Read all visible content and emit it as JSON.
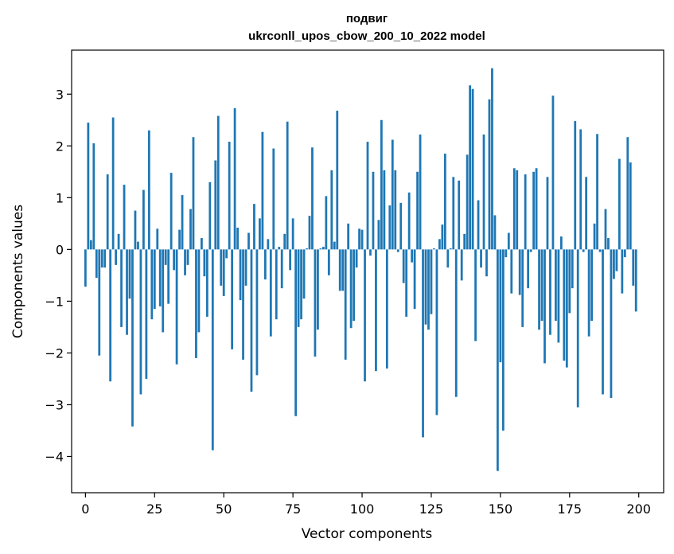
{
  "chart_data": {
    "type": "bar",
    "title": "подвиг",
    "subtitle": "ukrconll_upos_cbow_200_10_2022 model",
    "xlabel": "Vector components",
    "ylabel": "Components values",
    "xlim": [
      -5,
      209
    ],
    "ylim": [
      -4.7,
      3.85
    ],
    "xticks": [
      0,
      25,
      50,
      75,
      100,
      125,
      150,
      175,
      200
    ],
    "xtick_labels": [
      "0",
      "25",
      "50",
      "75",
      "100",
      "125",
      "150",
      "175",
      "200"
    ],
    "yticks": [
      -4,
      -3,
      -2,
      -1,
      0,
      1,
      2,
      3
    ],
    "ytick_labels": [
      "−4",
      "−3",
      "−2",
      "−1",
      "0",
      "1",
      "2",
      "3"
    ],
    "grid": false,
    "bar_color": "#1f77b4",
    "x": [
      0,
      1,
      2,
      3,
      4,
      5,
      6,
      7,
      8,
      9,
      10,
      11,
      12,
      13,
      14,
      15,
      16,
      17,
      18,
      19,
      20,
      21,
      22,
      23,
      24,
      25,
      26,
      27,
      28,
      29,
      30,
      31,
      32,
      33,
      34,
      35,
      36,
      37,
      38,
      39,
      40,
      41,
      42,
      43,
      44,
      45,
      46,
      47,
      48,
      49,
      50,
      51,
      52,
      53,
      54,
      55,
      56,
      57,
      58,
      59,
      60,
      61,
      62,
      63,
      64,
      65,
      66,
      67,
      68,
      69,
      70,
      71,
      72,
      73,
      74,
      75,
      76,
      77,
      78,
      79,
      80,
      81,
      82,
      83,
      84,
      85,
      86,
      87,
      88,
      89,
      90,
      91,
      92,
      93,
      94,
      95,
      96,
      97,
      98,
      99,
      100,
      101,
      102,
      103,
      104,
      105,
      106,
      107,
      108,
      109,
      110,
      111,
      112,
      113,
      114,
      115,
      116,
      117,
      118,
      119,
      120,
      121,
      122,
      123,
      124,
      125,
      126,
      127,
      128,
      129,
      130,
      131,
      132,
      133,
      134,
      135,
      136,
      137,
      138,
      139,
      140,
      141,
      142,
      143,
      144,
      145,
      146,
      147,
      148,
      149,
      150,
      151,
      152,
      153,
      154,
      155,
      156,
      157,
      158,
      159,
      160,
      161,
      162,
      163,
      164,
      165,
      166,
      167,
      168,
      169,
      170,
      171,
      172,
      173,
      174,
      175,
      176,
      177,
      178,
      179,
      180,
      181,
      182,
      183,
      184,
      185,
      186,
      187,
      188,
      189,
      190,
      191,
      192,
      193,
      194,
      195,
      196,
      197,
      198,
      199
    ],
    "values": [
      -0.72,
      2.45,
      0.18,
      2.05,
      -0.55,
      -2.05,
      -0.35,
      -0.35,
      1.45,
      -2.55,
      2.55,
      -0.3,
      0.3,
      -1.5,
      1.25,
      -1.65,
      -0.95,
      -3.42,
      0.75,
      0.15,
      -2.8,
      1.15,
      -2.5,
      2.3,
      -1.35,
      -1.15,
      0.4,
      -1.1,
      -1.6,
      -0.3,
      -1.05,
      1.48,
      -0.4,
      -2.22,
      0.38,
      1.05,
      -0.5,
      -0.3,
      0.78,
      2.17,
      -2.1,
      -1.6,
      0.22,
      -0.52,
      -1.3,
      1.3,
      -3.88,
      1.72,
      2.58,
      -0.7,
      -0.9,
      -0.17,
      2.08,
      -1.93,
      2.73,
      0.42,
      -0.98,
      -2.13,
      -0.7,
      0.32,
      -2.75,
      0.88,
      -2.43,
      0.6,
      2.27,
      -0.58,
      0.2,
      -1.68,
      1.95,
      -1.35,
      0.05,
      -0.75,
      0.3,
      2.47,
      -0.4,
      0.6,
      -3.22,
      -1.5,
      -1.35,
      -0.95,
      0.02,
      0.65,
      1.97,
      -2.07,
      -1.55,
      0.02,
      0.05,
      1.03,
      -0.5,
      1.53,
      0.15,
      2.68,
      -0.8,
      -0.8,
      -2.13,
      0.5,
      -1.52,
      -1.38,
      -0.35,
      0.4,
      0.38,
      -2.55,
      2.08,
      -0.12,
      1.5,
      -2.35,
      0.57,
      2.5,
      1.53,
      -2.3,
      0.85,
      2.12,
      1.53,
      -0.05,
      0.9,
      -0.65,
      -1.3,
      1.1,
      -0.25,
      -1.15,
      1.5,
      2.22,
      -3.63,
      -1.45,
      -1.55,
      -1.25,
      0.02,
      -3.2,
      0.2,
      0.48,
      1.85,
      -0.35,
      0.02,
      1.4,
      -2.85,
      1.33,
      -0.6,
      0.3,
      1.83,
      3.17,
      3.1,
      -1.77,
      0.95,
      -0.35,
      2.22,
      -0.52,
      2.9,
      3.5,
      0.66,
      -4.28,
      -2.18,
      -3.5,
      -0.15,
      0.32,
      -0.85,
      1.57,
      1.53,
      -0.88,
      -1.5,
      1.45,
      -0.75,
      -0.05,
      1.5,
      1.57,
      -1.55,
      -1.38,
      -2.2,
      1.4,
      -1.65,
      2.97,
      -1.38,
      -1.8,
      0.25,
      -2.15,
      -2.28,
      -1.23,
      -0.75,
      2.48,
      -3.05,
      2.32,
      -0.05,
      1.4,
      -1.68,
      -1.38,
      0.5,
      2.23,
      -0.05,
      -2.8,
      0.78,
      0.22,
      -2.87,
      -0.57,
      -0.42,
      1.75,
      -0.85,
      -0.15,
      2.17,
      1.68,
      -0.7,
      -1.2
    ]
  }
}
